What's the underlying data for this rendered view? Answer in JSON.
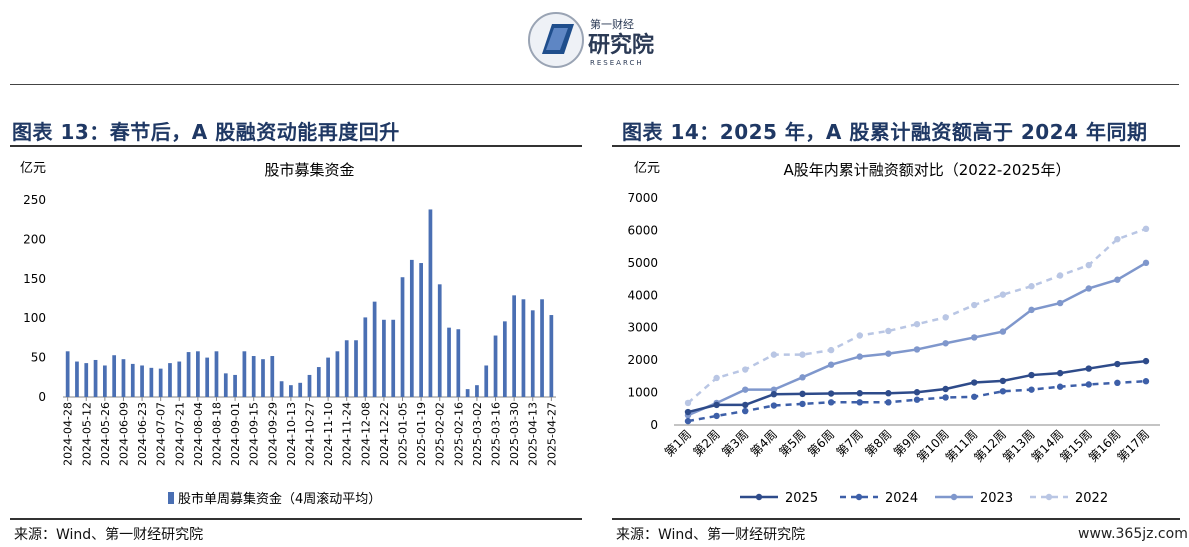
{
  "brand": {
    "cn_top": "第一财经",
    "cn_main": "研究院",
    "en": "RESEARCH"
  },
  "colors": {
    "title": "#1f3864",
    "bar": "#4a6fb3",
    "s2025": "#2e4b8a",
    "s2024": "#3d5fa8",
    "s2023": "#7f97cc",
    "s2022": "#b9c6e4"
  },
  "panels": [
    {
      "title": "图表 13：春节后，A 股融资动能再度回升",
      "source": "来源：Wind、第一财经研究院"
    },
    {
      "title": "图表 14：2025 年，A 股累计融资额高于 2024 年同期",
      "source": "来源：Wind、第一财经研究院"
    }
  ],
  "watermark": "www.365jz.com",
  "chart_data": [
    {
      "type": "bar",
      "title": "股市募集资金",
      "unit_label": "亿元",
      "ylim": [
        0,
        250
      ],
      "yticks": [
        0,
        50,
        100,
        150,
        200,
        250
      ],
      "legend": "股市单周募集资金（4周滚动平均）",
      "tick_labels": [
        "2024-04-28",
        "2024-05-12",
        "2024-05-26",
        "2024-06-09",
        "2024-06-23",
        "2024-07-07",
        "2024-07-21",
        "2024-08-04",
        "2024-08-18",
        "2024-09-01",
        "2024-09-15",
        "2024-09-29",
        "2024-10-13",
        "2024-10-27",
        "2024-11-10",
        "2024-11-24",
        "2024-12-08",
        "2024-12-22",
        "2025-01-05",
        "2025-01-19",
        "2025-02-02",
        "2025-02-16",
        "2025-03-02",
        "2025-03-16",
        "2025-03-30",
        "2025-04-13",
        "2025-04-27"
      ],
      "values": [
        58,
        45,
        43,
        47,
        40,
        53,
        48,
        42,
        40,
        37,
        36,
        43,
        45,
        57,
        58,
        50,
        58,
        30,
        28,
        58,
        52,
        48,
        52,
        20,
        15,
        18,
        28,
        38,
        50,
        58,
        72,
        72,
        101,
        121,
        98,
        98,
        152,
        174,
        170,
        238,
        143,
        88,
        86,
        10,
        15,
        40,
        78,
        96,
        129,
        124,
        110,
        124,
        104
      ]
    },
    {
      "type": "line",
      "title": "A股年内累计融资额对比（2022-2025年）",
      "unit_label": "亿元",
      "ylim": [
        0,
        7000
      ],
      "yticks": [
        0,
        1000,
        2000,
        3000,
        4000,
        5000,
        6000,
        7000
      ],
      "categories": [
        "第1周",
        "第2周",
        "第3周",
        "第4周",
        "第5周",
        "第6周",
        "第7周",
        "第8周",
        "第9周",
        "第10周",
        "第11周",
        "第12周",
        "第13周",
        "第14周",
        "第15周",
        "第16周",
        "第17周"
      ],
      "series": [
        {
          "name": "2025",
          "values": [
            400,
            620,
            620,
            950,
            960,
            970,
            980,
            980,
            1010,
            1110,
            1310,
            1360,
            1540,
            1600,
            1740,
            1880,
            1970
          ]
        },
        {
          "name": "2024",
          "values": [
            120,
            280,
            430,
            600,
            650,
            700,
            700,
            700,
            780,
            850,
            870,
            1040,
            1090,
            1180,
            1250,
            1300,
            1350
          ]
        },
        {
          "name": "2023",
          "values": [
            300,
            680,
            1090,
            1090,
            1470,
            1860,
            2110,
            2200,
            2330,
            2520,
            2700,
            2880,
            3550,
            3760,
            4210,
            4480,
            5000
          ]
        },
        {
          "name": "2022",
          "values": [
            680,
            1450,
            1710,
            2170,
            2170,
            2310,
            2760,
            2900,
            3110,
            3320,
            3700,
            4020,
            4280,
            4610,
            4930,
            5730,
            6050
          ]
        }
      ]
    }
  ]
}
